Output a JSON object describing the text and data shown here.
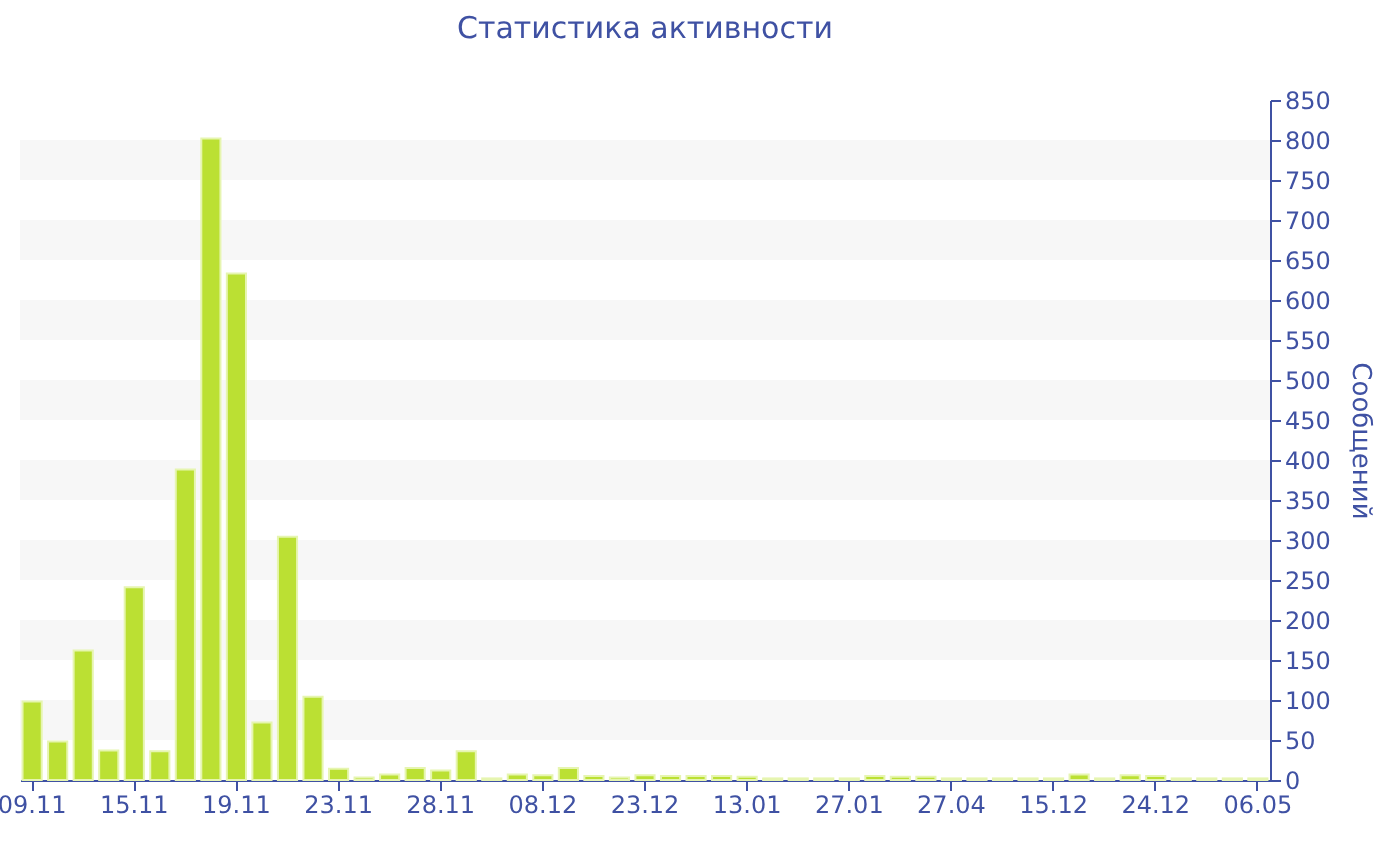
{
  "chart_data": {
    "type": "bar",
    "title": "Статистика активности",
    "ylabel": "Сообщений",
    "categories": [
      "09.11",
      null,
      null,
      null,
      "15.11",
      null,
      null,
      null,
      "19.11",
      null,
      null,
      null,
      "23.11",
      null,
      null,
      null,
      "28.11",
      null,
      null,
      null,
      "08.12",
      null,
      null,
      null,
      "23.12",
      null,
      null,
      null,
      "13.01",
      null,
      null,
      null,
      "27.01",
      null,
      null,
      null,
      "27.04",
      null,
      null,
      null,
      "15.12",
      null,
      null,
      null,
      "24.12",
      null,
      null,
      null,
      "06.05"
    ],
    "values": [
      98,
      48,
      162,
      37,
      241,
      36,
      388,
      802,
      633,
      72,
      304,
      104,
      14,
      3,
      7,
      15,
      12,
      36,
      2,
      7,
      6,
      15,
      5,
      3,
      6,
      5,
      5,
      5,
      4,
      2,
      2,
      2,
      2,
      5,
      4,
      4,
      2,
      2,
      2,
      2,
      2,
      7,
      2,
      6,
      5,
      2,
      2,
      2,
      2
    ],
    "color": "#bbe033",
    "ylim": [
      0,
      850
    ],
    "yticks": [
      0,
      50,
      100,
      150,
      200,
      250,
      300,
      350,
      400,
      450,
      500,
      550,
      600,
      650,
      700,
      750,
      800,
      850
    ],
    "bands": [
      {
        "axis": "y",
        "from": 50,
        "to": 100,
        "color": "#f7f7f7"
      },
      {
        "axis": "y",
        "from": 150,
        "to": 200,
        "color": "#f7f7f7"
      },
      {
        "axis": "y",
        "from": 250,
        "to": 300,
        "color": "#f7f7f7"
      },
      {
        "axis": "y",
        "from": 350,
        "to": 400,
        "color": "#f7f7f7"
      },
      {
        "axis": "y",
        "from": 450,
        "to": 500,
        "color": "#f7f7f7"
      },
      {
        "axis": "y",
        "from": 550,
        "to": 600,
        "color": "#f7f7f7"
      },
      {
        "axis": "y",
        "from": 650,
        "to": 700,
        "color": "#f7f7f7"
      },
      {
        "axis": "y",
        "from": 750,
        "to": 800,
        "color": "#f7f7f7"
      }
    ]
  }
}
